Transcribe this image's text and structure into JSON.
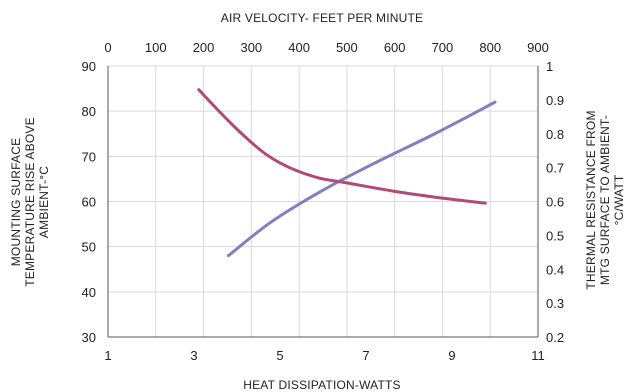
{
  "chart_data": {
    "type": "line",
    "title": "",
    "top_axis": {
      "label": "AIR VELOCITY- FEET PER MINUTE",
      "ticks": [
        "0",
        "100",
        "200",
        "300",
        "400",
        "500",
        "600",
        "700",
        "800",
        "900"
      ],
      "range": [
        0,
        900
      ]
    },
    "bottom_axis": {
      "label": "HEAT DISSIPATION-WATTS",
      "ticks": [
        "1",
        "3",
        "5",
        "7",
        "9",
        "11"
      ],
      "range": [
        1,
        11
      ]
    },
    "left_axis": {
      "label_lines": [
        "MOUNTING SURFACE",
        "TEMPERATURE RISE ABOVE",
        "AMBIENT-°C"
      ],
      "ticks": [
        "30",
        "40",
        "50",
        "60",
        "70",
        "80",
        "90"
      ],
      "range": [
        30,
        90
      ]
    },
    "right_axis": {
      "label_lines": [
        "THERMAL RESISTANCE FROM",
        "MTG SURFACE TO AMBIENT-",
        "°C/WATT"
      ],
      "ticks": [
        "0.2",
        "0.3",
        "0.4",
        "0.5",
        "0.6",
        "0.7",
        "0.8",
        "0.9",
        "1"
      ],
      "range": [
        0.2,
        1.0
      ]
    },
    "grid": true,
    "series": [
      {
        "color": "#8080c0",
        "x_axis": "bottom",
        "y_axis": "left",
        "points": [
          [
            3.8,
            48
          ],
          [
            4.8,
            55.5
          ],
          [
            6.0,
            62.5
          ],
          [
            7.2,
            68.5
          ],
          [
            8.6,
            75
          ],
          [
            10.0,
            82
          ]
        ]
      },
      {
        "color": "#b04a78",
        "x_axis": "top",
        "y_axis": "right",
        "points": [
          [
            190,
            0.93
          ],
          [
            230,
            0.87
          ],
          [
            280,
            0.8
          ],
          [
            330,
            0.74
          ],
          [
            380,
            0.7
          ],
          [
            440,
            0.67
          ],
          [
            500,
            0.655
          ],
          [
            600,
            0.63
          ],
          [
            700,
            0.61
          ],
          [
            790,
            0.595
          ]
        ]
      }
    ]
  }
}
